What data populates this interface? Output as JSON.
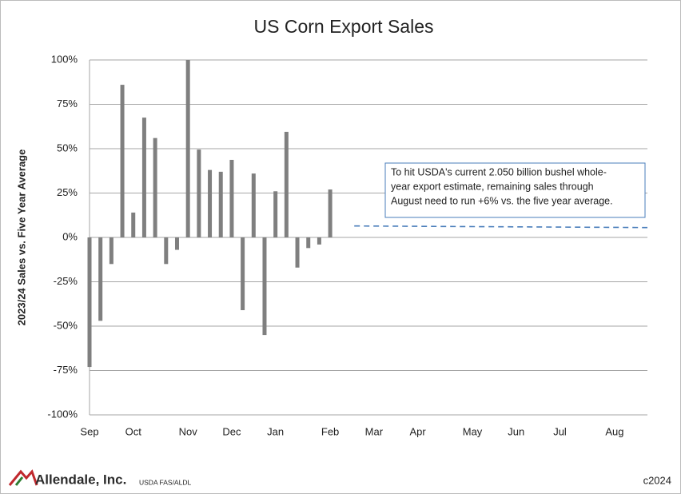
{
  "chart_data": {
    "type": "bar",
    "title": "US Corn Export Sales",
    "y_label": "2023/24 Sales vs. Five Year Average",
    "categories": [
      "Sep",
      null,
      null,
      null,
      "Oct",
      null,
      null,
      null,
      null,
      "Nov",
      null,
      null,
      null,
      "Dec",
      null,
      null,
      null,
      "Jan",
      null,
      null,
      null,
      null,
      "Feb",
      null,
      null,
      null,
      "Mar",
      null,
      null,
      null,
      "Apr",
      null,
      null,
      null,
      null,
      "May",
      null,
      null,
      null,
      "Jun",
      null,
      null,
      null,
      "Jul",
      null,
      null,
      null,
      null,
      "Aug",
      null,
      null,
      null
    ],
    "values": [
      -73,
      -47,
      -15,
      86,
      14,
      67.5,
      56,
      -15,
      -7,
      100,
      49.5,
      38,
      37,
      43.7,
      -41,
      36,
      -55,
      26,
      59.5,
      -17,
      -6,
      -4,
      27,
      null,
      null,
      null,
      null,
      null,
      null,
      null,
      null,
      null,
      null,
      null,
      null,
      null,
      null,
      null,
      null,
      null,
      null,
      null,
      null,
      null,
      null,
      null,
      null,
      null,
      null,
      null,
      null,
      null
    ],
    "color": "#7f7f7f",
    "ylim": [
      -100,
      100
    ],
    "yticks": [
      {
        "value": -100,
        "label": "-100%"
      },
      {
        "value": -75,
        "label": "-75%"
      },
      {
        "value": -50,
        "label": "-50%"
      },
      {
        "value": -25,
        "label": "-25%"
      },
      {
        "value": 0,
        "label": "0%"
      },
      {
        "value": 25,
        "label": "25%"
      },
      {
        "value": 50,
        "label": "50%"
      },
      {
        "value": 75,
        "label": "75%"
      },
      {
        "value": 100,
        "label": "100%"
      }
    ],
    "grid": true,
    "reference_line": {
      "value": 6,
      "color": "#4a7ebb"
    },
    "annotation": [
      "To hit USDA's current 2.050 billion bushel whole-",
      "year export estimate, remaining sales through",
      "August need to run +6% vs. the five year average."
    ],
    "footer": {
      "brand": "Allendale, Inc.",
      "source": "USDA FAS/ALDL",
      "copyright": "c2024"
    }
  }
}
